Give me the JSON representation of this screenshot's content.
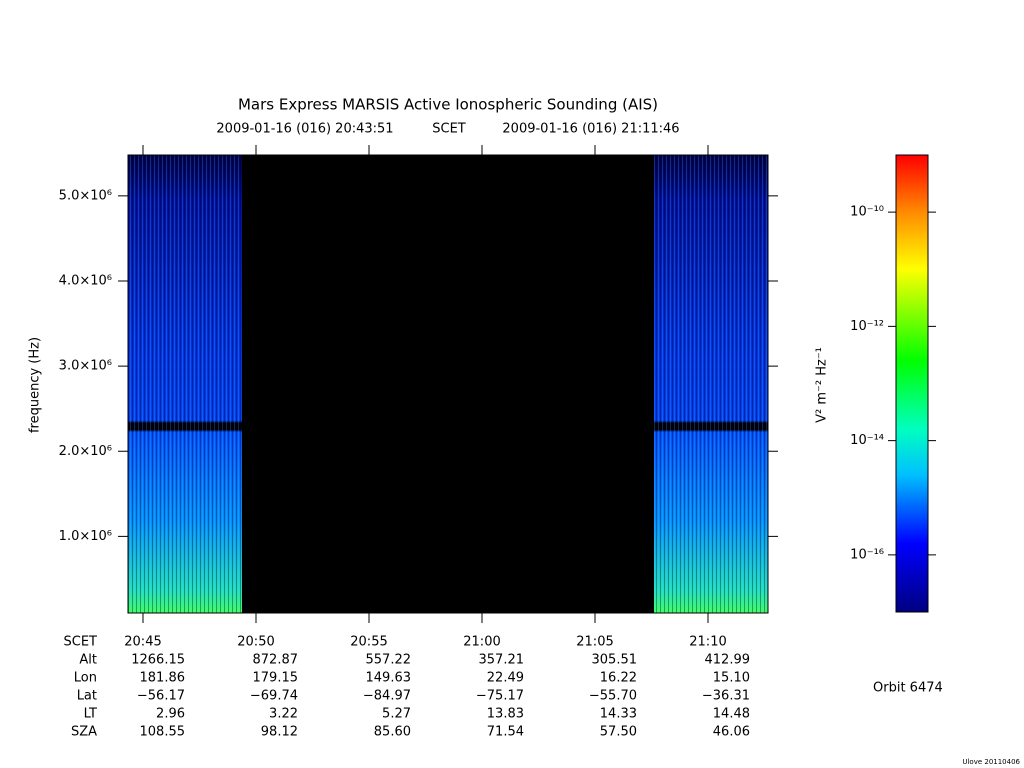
{
  "chart_data": {
    "type": "spectrogram",
    "title": "Mars Express MARSIS Active Ionospheric Sounding (AIS)",
    "start_time": "2009-01-16 (016) 20:43:51",
    "time_system": "SCET",
    "end_time": "2009-01-16 (016) 21:11:46",
    "ylabel": "frequency (Hz)",
    "ylim": [
      100000,
      5480000
    ],
    "yticks": [
      {
        "value": 1000000,
        "label": "1.0×10⁶"
      },
      {
        "value": 2000000,
        "label": "2.0×10⁶"
      },
      {
        "value": 3000000,
        "label": "3.0×10⁶"
      },
      {
        "value": 4000000,
        "label": "4.0×10⁶"
      },
      {
        "value": 5000000,
        "label": "5.0×10⁶"
      }
    ],
    "categories": [
      "20:45",
      "20:50",
      "20:55",
      "21:00",
      "21:05",
      "21:10"
    ],
    "x_row_label": "SCET",
    "ephemeris": [
      {
        "label": "Alt",
        "values": [
          "1266.15",
          "872.87",
          "557.22",
          "357.21",
          "305.51",
          "412.99"
        ]
      },
      {
        "label": "Lon",
        "values": [
          "181.86",
          "179.15",
          "149.63",
          "22.49",
          "16.22",
          "15.10"
        ]
      },
      {
        "label": "Lat",
        "values": [
          "−56.17",
          "−69.74",
          "−84.97",
          "−75.17",
          "−55.70",
          "−36.31"
        ]
      },
      {
        "label": "LT",
        "values": [
          "2.96",
          "3.22",
          "5.27",
          "13.83",
          "14.33",
          "14.48"
        ]
      },
      {
        "label": "SZA",
        "values": [
          "108.55",
          "98.12",
          "85.60",
          "71.54",
          "57.50",
          "46.06"
        ]
      }
    ],
    "colorbar": {
      "label": "V² m⁻² Hz⁻¹",
      "log": true,
      "lim": [
        1e-17,
        1e-09
      ],
      "ticks": [
        {
          "value": 1e-10,
          "label": "10⁻¹⁰"
        },
        {
          "value": 1e-12,
          "label": "10⁻¹²"
        },
        {
          "value": 1e-14,
          "label": "10⁻¹⁴"
        },
        {
          "value": 1e-16,
          "label": "10⁻¹⁶"
        }
      ]
    },
    "orbit": "Orbit 6474",
    "credit": "Ulove 20110406"
  }
}
